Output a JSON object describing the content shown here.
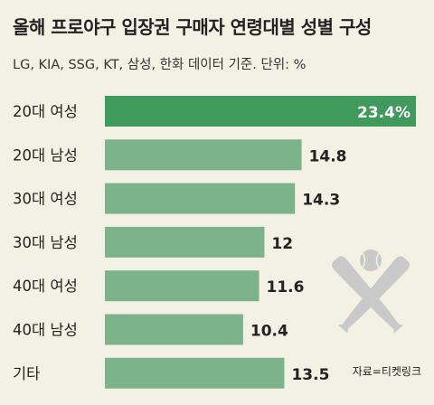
{
  "header": {
    "title": "올해 프로야구 입장권 구매자 연령대별 성별 구성",
    "subtitle": "LG, KIA, SSG, KT, 삼성, 한화 데이터 기준. 단위: %"
  },
  "source": "자료=티켓링크",
  "colors": {
    "background": "#f3f1e4",
    "highlight_bar": "#3f9a5c",
    "bar": "#7db38a",
    "highlight_label": "#ffffff",
    "label": "#222222",
    "icon": "#c9c9c9"
  },
  "icon_name": "baseball-bats-and-ball-icon",
  "chart_data": {
    "type": "bar",
    "orientation": "horizontal",
    "title": "올해 프로야구 입장권 구매자 연령대별 성별 구성",
    "subtitle": "LG, KIA, SSG, KT, 삼성, 한화 데이터 기준. 단위: %",
    "unit": "%",
    "categories": [
      "20대 여성",
      "20대 남성",
      "30대 여성",
      "30대 남성",
      "40대 여성",
      "40대 남성",
      "기타"
    ],
    "values": [
      23.4,
      14.8,
      14.3,
      12,
      11.6,
      10.4,
      13.5
    ],
    "value_labels": [
      "23.4%",
      "14.8",
      "14.3",
      "12",
      "11.6",
      "10.4",
      "13.5"
    ],
    "highlight_index": 0,
    "xlim": [
      0,
      23.4
    ],
    "grid": false,
    "legend": "none"
  }
}
